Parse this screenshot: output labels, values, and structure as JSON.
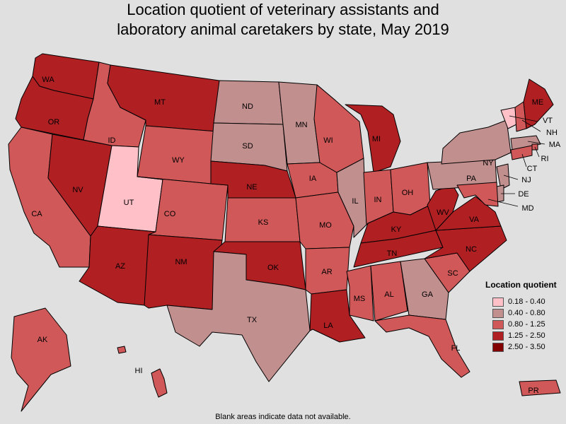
{
  "title_lines": [
    "Location quotient of veterinary assistants and",
    "laboratory animal caretakers by state, May 2019"
  ],
  "legend": {
    "title": "Location quotient",
    "bins": [
      {
        "label": "0.18 - 0.40",
        "color": "#ffc0c8"
      },
      {
        "label": "0.40 - 0.80",
        "color": "#c28f8f"
      },
      {
        "label": "0.80 - 1.25",
        "color": "#d05858"
      },
      {
        "label": "1.25 - 2.50",
        "color": "#b01f22"
      },
      {
        "label": "2.50 - 3.50",
        "color": "#840000"
      }
    ]
  },
  "footnote": "Blank areas indicate data not available.",
  "states": [
    {
      "abbr": "WA",
      "bin": 3
    },
    {
      "abbr": "OR",
      "bin": 3
    },
    {
      "abbr": "CA",
      "bin": 2
    },
    {
      "abbr": "NV",
      "bin": 3
    },
    {
      "abbr": "ID",
      "bin": 2
    },
    {
      "abbr": "MT",
      "bin": 3
    },
    {
      "abbr": "WY",
      "bin": 2
    },
    {
      "abbr": "UT",
      "bin": 0
    },
    {
      "abbr": "AZ",
      "bin": 3
    },
    {
      "abbr": "CO",
      "bin": 2
    },
    {
      "abbr": "NM",
      "bin": 3
    },
    {
      "abbr": "ND",
      "bin": 1
    },
    {
      "abbr": "SD",
      "bin": 1
    },
    {
      "abbr": "NE",
      "bin": 3
    },
    {
      "abbr": "KS",
      "bin": 2
    },
    {
      "abbr": "OK",
      "bin": 3
    },
    {
      "abbr": "TX",
      "bin": 1
    },
    {
      "abbr": "MN",
      "bin": 1
    },
    {
      "abbr": "IA",
      "bin": 2
    },
    {
      "abbr": "MO",
      "bin": 2
    },
    {
      "abbr": "AR",
      "bin": 2
    },
    {
      "abbr": "LA",
      "bin": 3
    },
    {
      "abbr": "WI",
      "bin": 2
    },
    {
      "abbr": "IL",
      "bin": 1
    },
    {
      "abbr": "MI",
      "bin": 3
    },
    {
      "abbr": "IN",
      "bin": 2
    },
    {
      "abbr": "OH",
      "bin": 2
    },
    {
      "abbr": "KY",
      "bin": 3
    },
    {
      "abbr": "TN",
      "bin": 3
    },
    {
      "abbr": "MS",
      "bin": 2
    },
    {
      "abbr": "AL",
      "bin": 2
    },
    {
      "abbr": "GA",
      "bin": 1
    },
    {
      "abbr": "FL",
      "bin": 2
    },
    {
      "abbr": "SC",
      "bin": 2
    },
    {
      "abbr": "NC",
      "bin": 3
    },
    {
      "abbr": "VA",
      "bin": 3
    },
    {
      "abbr": "WV",
      "bin": 3
    },
    {
      "abbr": "PA",
      "bin": 1
    },
    {
      "abbr": "NY",
      "bin": 1
    },
    {
      "abbr": "VT",
      "bin": 0
    },
    {
      "abbr": "NH",
      "bin": 2
    },
    {
      "abbr": "ME",
      "bin": 3
    },
    {
      "abbr": "MA",
      "bin": 1
    },
    {
      "abbr": "RI",
      "bin": 2
    },
    {
      "abbr": "CT",
      "bin": 2
    },
    {
      "abbr": "NJ",
      "bin": 1
    },
    {
      "abbr": "DE",
      "bin": 1
    },
    {
      "abbr": "MD",
      "bin": 2
    },
    {
      "abbr": "AK",
      "bin": 2
    },
    {
      "abbr": "HI",
      "bin": 2
    },
    {
      "abbr": "PR",
      "bin": 2
    }
  ]
}
